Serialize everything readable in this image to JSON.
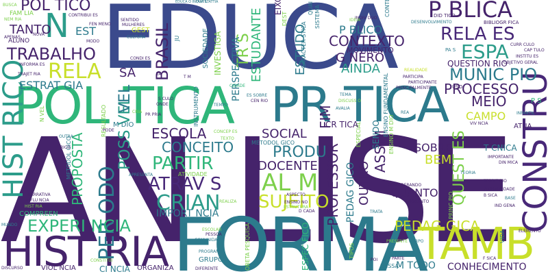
{
  "words": {
    "analise": "AN LISE",
    "educa": "EDUCA",
    "formacao": "FORMA",
    "politica": "POL TICA",
    "pratica": "PR TICA",
    "historia": "HIST RIA",
    "tambem": "TAMB M",
    "publica": "P BLICA",
    "relacoes": "RELA ES",
    "espaco": "ESPA",
    "trabalho": "TRABALHO",
    "construcao": "CONSTRU",
    "historico": "HIST RICO",
    "municipio": "MUNIC PIO",
    "processo": "PROCESSO",
    "meio": "MEIO",
    "experiencia": "EXPERI NCIA",
    "pedagogica": "PEDAG GICA",
    "crianca": "CRIAN",
    "atraves": "ATRAV S",
    "sujeito": "SUJEITO",
    "alem": "AL M",
    "partir": "PARTIR",
    "conceito": "CONCEITO",
    "escola": "ESCOLA",
    "docente": "DOCENTE",
    "produ": "PRODU",
    "brasil": "BRASIL",
    "relacao": "RELA",
    "politico": "POL TICO",
    "quanto": "QUANTO",
    "sobre": "SOBRE",
    "bem": "BEM",
    "campo": "CAMPO",
    "professor": "PROFESSOR",
    "assim": "ASSIM",
    "contexto": "CONTEXTO",
    "genero": "G NERO",
    "ainda": "AINDA",
    "publico": "P BLICO",
    "estudo": "ESTUDO",
    "estudante": "ESTUDANTE",
    "tres": "TR S",
    "social": "SOCIAL",
    "importancia": "IMPORT NCIA",
    "estrategia": "ESTRAT GIA",
    "proposta": "PROPOSTA",
    "possivel": "POSS VEL",
    "periodo": "PER ODO",
    "conhecimento": "CONHECIMENTO",
    "tanto": "TANTO",
    "estado": "EST",
    "sa": "SA",
    "n": "N",
    "nivel": "VEL",
    "perspectiva": "PERSPECTIVA",
    "movimento": "MOVIMENTO",
    "questao": "QUEST ES",
    "questionario": "QUESTION RIO",
    "violencia": "VIOL NCIA",
    "ciencia": "CI NCIA",
    "organiza": "ORGANIZA",
    "grupo": "GRUPO",
    "medo": "M TODO",
    "outro": "OUTRO",
    "pedagogico": "PEDAG GICO",
    "fim": "FIM",
    "critica": "CR TICA",
    "tecnica": "T CNICA",
    "metodologico": "METODOL GICO",
    "atividade": "ATIVIDADE",
    "aluno": "ALUNO",
    "familia": "FAM LIA",
    "sociedade": "SOCIEDADE",
    "investiga": "INVESTIGA",
    "gest": "GEST",
    "especifico": "ESPEC FICO",
    "sendo": "SENDO",
    "compreen": "COMPREEN",
    "dessa": "DESSA",
    "elemento": "ELEMENTO",
    "atua": "ATUA",
    "programa": "PROGRAMA",
    "diferente": "DIFERENTE",
    "infantil": "INFANTIL",
    "realidade": "REALIDADE",
    "participa": "PARTICIPA",
    "particip": "PARTICIPANTE",
    "principalmente": "PRINCIPALMENTE",
    "uso": "USO",
    "pa": "PA S",
    "ps": "P S",
    "curriculo": "CURR CULO",
    "capitulo": "CAP TULO",
    "instituto": "INSTITU ES",
    "objetivo": "OBJETIVO GERAL",
    "didatico": "DID TICO",
    "bibliografia": "BIBLIOGR FICA",
    "desenvolvimento": "DESENVOLVIMENTO",
    "conte": "CONTE",
    "individuo": "INDIV DUO",
    "ideia": "IDEIA",
    "sistema": "SISTEMA",
    "caracteristica": "CARACTER STICA",
    "cultura": "CULTURA",
    "mulheres": "MULHERES",
    "sentido": "SENTIDO",
    "fenmeno": "FEN MENO",
    "modo": "MODO",
    "contribui": "CONTRIBUI ES",
    "nova": "NOVA",
    "busca": "BUSCA",
    "nem": "NEM RIA",
    "forma": "FORMA",
    "informa": "INFORMA ES",
    "trajetoria": "TRAJET RIA",
    "apenas": "APENAS",
    "condi": "CONDI ES",
    "tai": "TAI",
    "cidade": "CIDADE",
    "tm": "T M",
    "seculo": "S CULO",
    "onde": "ONDE",
    "ppria": "PR PRIA",
    "cria": "CRIA",
    "mdio": "M DIO",
    "pode": "PODE",
    "rico": "RICO",
    "resultado": "RESULTADO",
    "instrumento": "INSTRUMENTO",
    "tempo": "TEMPO",
    "cenario": "CEN RIO",
    "esfera": "ES SOBRE",
    "concep": "CONCEP ES",
    "texto": "TEXTO",
    "tema": "TEMA",
    "discussao": "DISCUSS O",
    "avalia": "AVALIA",
    "ensinofund": "ENSINO FUNDAMENTAL",
    "ensinomed": "ENSINO M DIO",
    "rea": "REA",
    "vivencia": "VIV NCIA",
    "especial": "ESPECIAL",
    "importante": "IMPORTANTE",
    "dinamica": "DIN MICA",
    "teoria": "TEORIA",
    "territorio": "TERRIT RIO",
    "possibilidade": "POSSIBILIDADE",
    "basica": "B SICA",
    "base": "BASE",
    "indigena": "IND GENA",
    "vida": "VIDA",
    "fisica": "F SICA",
    "pessoa": "PESSOA",
    "comunidade": "COMUNIDADE",
    "escolar": "ESCOLAR",
    "aspecto": "ASPECTO",
    "ensinono": "ENSINO NO",
    "estrutura": "ESTRUTURA",
    "realiza": "REALIZA",
    "considerando": "CONSIDERANDO",
    "enquanto": "ENQUANTO",
    "principio": "PRINC PIO",
    "cada": "D CADA",
    "trata": "TRATA",
    "outra": "OUTRA",
    "narrativa": "NARRATIVA",
    "influencia": "INFLU NCIA",
    "historia2": "HIST RIA",
    "apresenta": "APRESENTA",
    "mundo": "MUNDO",
    "discurso": "DISCURSO",
    "constitui": "CONSTITUI",
    "presente": "PRESENTE",
    "corpo": "CORPO",
    "delogo": "DI LOGO",
    "parte": "PARTE",
    "poi": "POI",
    "quai": "QUAI",
    "eixo": "EIXO",
    "nivel2": "N VEL",
    "pessoa2": "OBETA PESQUISA",
    "tipos": "TIPOS",
    "a": "A",
    "dest": "DEST",
    "ju": "JU",
    "top1": "EDUCA O INFANTIL",
    "top2": "QUA STATTIA"
  }
}
